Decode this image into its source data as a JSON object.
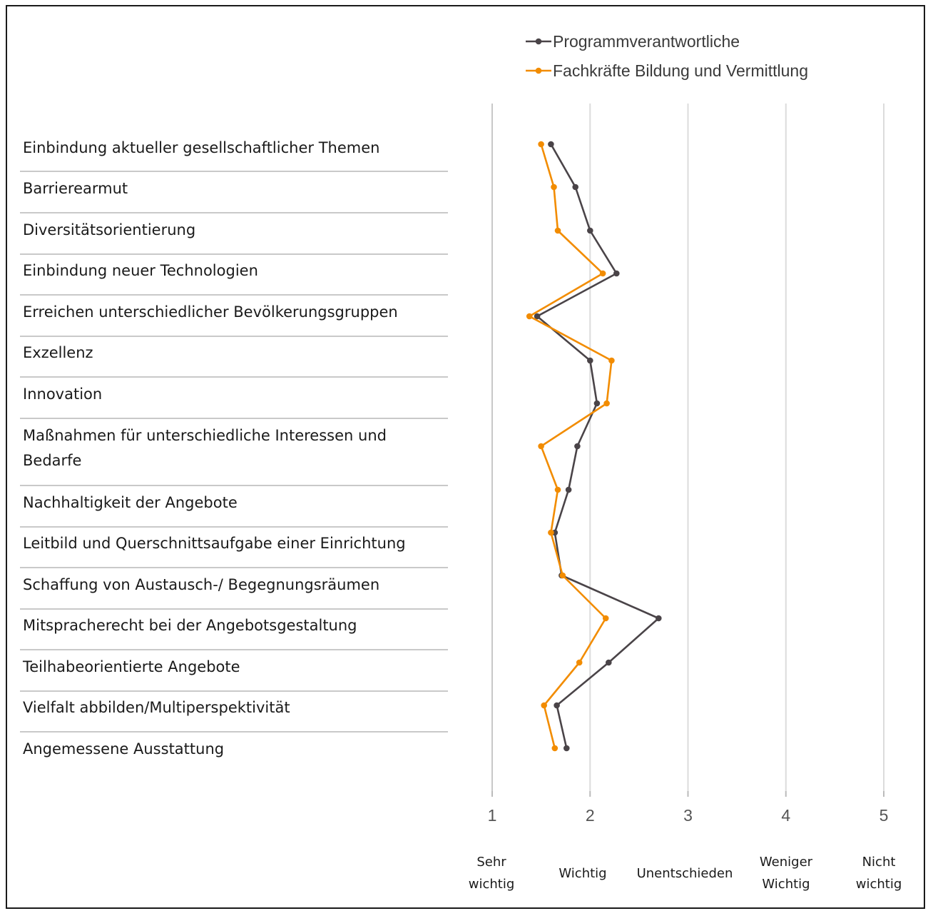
{
  "chart_data": {
    "type": "line",
    "orientation": "horizontal",
    "categories": [
      "Einbindung aktueller gesellschaftlicher Themen",
      "Barrierearmut",
      "Diversitätsorientierung",
      "Einbindung neuer Technologien",
      "Erreichen unterschiedlicher Bevölkerungsgruppen",
      "Exzellenz",
      "Innovation",
      "Maßnahmen für unterschiedliche Interessen und Bedarfe",
      "Nachhaltigkeit der Angebote",
      "Leitbild und Querschnittsaufgabe einer Einrichtung",
      "Schaffung von Austausch-/ Begegnungsräumen",
      "Mitspracherecht bei der Angebotsgestaltung",
      "Teilhabeorientierte Angebote",
      "Vielfalt abbilden/Multiperspektivität",
      "Angemessene Ausstattung"
    ],
    "category_lines": [
      [
        "Einbindung aktueller gesellschaftlicher Themen"
      ],
      [
        "Barrierearmut"
      ],
      [
        "Diversitätsorientierung"
      ],
      [
        "Einbindung neuer Technologien"
      ],
      [
        "Erreichen unterschiedlicher Bevölkerungsgruppen"
      ],
      [
        "Exzellenz"
      ],
      [
        "Innovation"
      ],
      [
        "Maßnahmen für unterschiedliche Interessen und",
        "Bedarfe"
      ],
      [
        "Nachhaltigkeit der Angebote"
      ],
      [
        "Leitbild und Querschnittsaufgabe einer Einrichtung"
      ],
      [
        "Schaffung von Austausch-/ Begegnungsräumen"
      ],
      [
        "Mitspracherecht bei der Angebotsgestaltung"
      ],
      [
        "Teilhabeorientierte Angebote"
      ],
      [
        "Vielfalt abbilden/Multiperspektivität"
      ],
      [
        "Angemessene Ausstattung"
      ]
    ],
    "series": [
      {
        "name": "Programmverantwortliche",
        "color": "#4a4448",
        "values": [
          1.6,
          1.85,
          2.0,
          2.27,
          1.46,
          2.0,
          2.07,
          1.87,
          1.78,
          1.64,
          1.71,
          2.7,
          2.19,
          1.66,
          1.76
        ]
      },
      {
        "name": "Fachkräfte Bildung und Vermittlung",
        "color": "#f28c00",
        "values": [
          1.5,
          1.63,
          1.67,
          2.13,
          1.38,
          2.22,
          2.17,
          1.5,
          1.67,
          1.6,
          1.72,
          2.16,
          1.89,
          1.53,
          1.64
        ]
      }
    ],
    "xlim": [
      1,
      5
    ],
    "xticks": [
      "1",
      "2",
      "3",
      "4",
      "5"
    ],
    "scale_labels": [
      [
        "Sehr",
        "wichtig"
      ],
      [
        "Wichtig"
      ],
      [
        "Unentschieden"
      ],
      [
        "Weniger",
        "Wichtig"
      ],
      [
        "Nicht",
        "wichtig"
      ]
    ],
    "grid": true,
    "legend_position": "top"
  }
}
